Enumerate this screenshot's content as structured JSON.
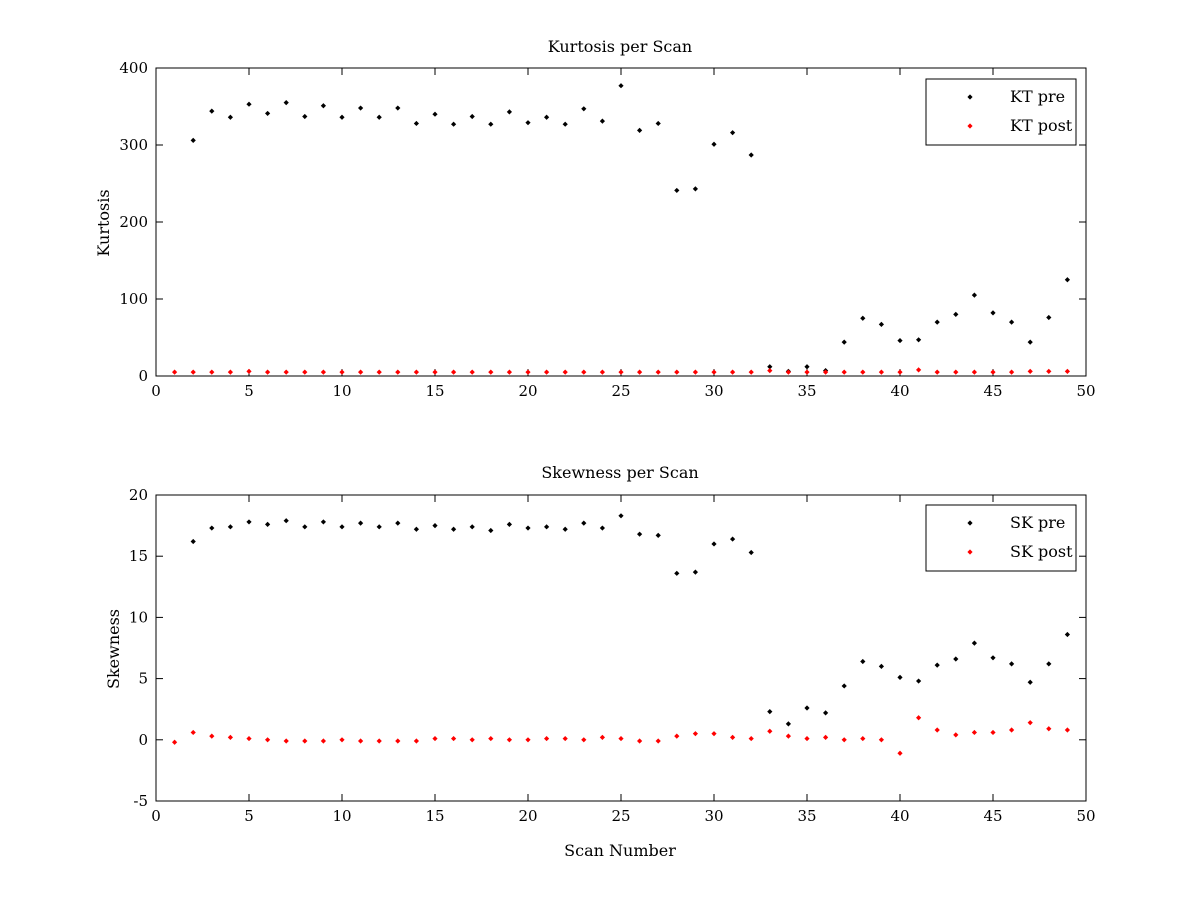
{
  "chart_data": [
    {
      "type": "scatter",
      "title": "Kurtosis per Scan",
      "xlabel": "",
      "ylabel": "Kurtosis",
      "xlim": [
        0,
        50
      ],
      "ylim": [
        0,
        400
      ],
      "xticks": [
        0,
        5,
        10,
        15,
        20,
        25,
        30,
        35,
        40,
        45,
        50
      ],
      "yticks": [
        0,
        100,
        200,
        300,
        400
      ],
      "grid": false,
      "legend_position": "top-right",
      "x": [
        1,
        2,
        3,
        4,
        5,
        6,
        7,
        8,
        9,
        10,
        11,
        12,
        13,
        14,
        15,
        16,
        17,
        18,
        19,
        20,
        21,
        22,
        23,
        24,
        25,
        26,
        27,
        28,
        29,
        30,
        31,
        32,
        33,
        34,
        35,
        36,
        37,
        38,
        39,
        40,
        41,
        42,
        43,
        44,
        45,
        46,
        47,
        48,
        49
      ],
      "series": [
        {
          "name": "KT pre",
          "color": "#000000",
          "values": [
            null,
            306,
            344,
            336,
            353,
            341,
            355,
            337,
            351,
            336,
            348,
            336,
            348,
            328,
            340,
            327,
            337,
            327,
            343,
            329,
            336,
            327,
            347,
            331,
            377,
            319,
            328,
            241,
            243,
            301,
            316,
            287,
            12,
            6,
            12,
            7,
            44,
            75,
            67,
            46,
            47,
            70,
            80,
            105,
            82,
            70,
            44,
            76,
            125
          ]
        },
        {
          "name": "KT post",
          "color": "#ff0000",
          "values": [
            5,
            5,
            5,
            5,
            6,
            5,
            5,
            5,
            5,
            5,
            5,
            5,
            5,
            5,
            5,
            5,
            5,
            5,
            5,
            5,
            5,
            5,
            5,
            5,
            5,
            5,
            5,
            5,
            5,
            5,
            5,
            5,
            7,
            5,
            5,
            5,
            5,
            5,
            5,
            5,
            8,
            5,
            5,
            5,
            5,
            5,
            6,
            6,
            6
          ]
        }
      ]
    },
    {
      "type": "scatter",
      "title": "Skewness per Scan",
      "xlabel": "Scan Number",
      "ylabel": "Skewness",
      "xlim": [
        0,
        50
      ],
      "ylim": [
        -5,
        20
      ],
      "xticks": [
        0,
        5,
        10,
        15,
        20,
        25,
        30,
        35,
        40,
        45,
        50
      ],
      "yticks": [
        -5,
        0,
        5,
        10,
        15,
        20
      ],
      "grid": false,
      "legend_position": "top-right",
      "x": [
        1,
        2,
        3,
        4,
        5,
        6,
        7,
        8,
        9,
        10,
        11,
        12,
        13,
        14,
        15,
        16,
        17,
        18,
        19,
        20,
        21,
        22,
        23,
        24,
        25,
        26,
        27,
        28,
        29,
        30,
        31,
        32,
        33,
        34,
        35,
        36,
        37,
        38,
        39,
        40,
        41,
        42,
        43,
        44,
        45,
        46,
        47,
        48,
        49
      ],
      "series": [
        {
          "name": "SK pre",
          "color": "#000000",
          "values": [
            null,
            16.2,
            17.3,
            17.4,
            17.8,
            17.6,
            17.9,
            17.4,
            17.8,
            17.4,
            17.7,
            17.4,
            17.7,
            17.2,
            17.5,
            17.2,
            17.4,
            17.1,
            17.6,
            17.3,
            17.4,
            17.2,
            17.7,
            17.3,
            18.3,
            16.8,
            16.7,
            13.6,
            13.7,
            16.0,
            16.4,
            15.3,
            2.3,
            1.3,
            2.6,
            2.2,
            4.4,
            6.4,
            6.0,
            5.1,
            4.8,
            6.1,
            6.6,
            7.9,
            6.7,
            6.2,
            4.7,
            6.2,
            8.6
          ]
        },
        {
          "name": "SK post",
          "color": "#ff0000",
          "values": [
            -0.2,
            0.6,
            0.3,
            0.2,
            0.1,
            0.0,
            -0.1,
            -0.1,
            -0.1,
            0.0,
            -0.1,
            -0.1,
            -0.1,
            -0.1,
            0.1,
            0.1,
            0.0,
            0.1,
            0.0,
            0.0,
            0.1,
            0.1,
            0.0,
            0.2,
            0.1,
            -0.1,
            -0.1,
            0.3,
            0.5,
            0.5,
            0.2,
            0.1,
            0.7,
            0.3,
            0.1,
            0.2,
            0.0,
            0.1,
            0.0,
            -1.1,
            1.8,
            0.8,
            0.4,
            0.6,
            0.6,
            0.8,
            1.4,
            0.9,
            0.8
          ]
        }
      ]
    }
  ]
}
